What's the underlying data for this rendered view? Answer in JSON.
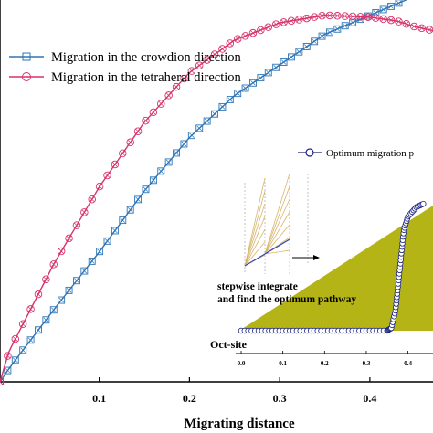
{
  "chart_data": {
    "type": "line",
    "xlabel": "Migrating distance",
    "ylabel": "",
    "xlim": [
      -0.01,
      0.47
    ],
    "ylim": [
      0,
      1.0
    ],
    "x_ticks": [
      "0.1",
      "0.2",
      "0.3",
      "0.4"
    ],
    "x_tick_values": [
      0.1,
      0.2,
      0.3,
      0.4
    ],
    "grid": false,
    "legend_position": "top-left",
    "series": [
      {
        "name": "Migration in the crowdion direction",
        "color": "#2e75b6",
        "marker": "square-x",
        "x": [
          -0.01,
          0.0,
          0.05,
          0.1,
          0.15,
          0.2,
          0.25,
          0.3,
          0.35,
          0.4,
          0.43,
          0.45,
          0.47
        ],
        "y": [
          0.0,
          0.035,
          0.19,
          0.34,
          0.5,
          0.64,
          0.75,
          0.83,
          0.91,
          0.96,
          0.99,
          1.01,
          1.04
        ]
      },
      {
        "name": "Migration in the tetraheral direction",
        "color": "#d6336c",
        "marker": "circle-x",
        "x": [
          -0.01,
          0.0,
          0.05,
          0.1,
          0.15,
          0.2,
          0.25,
          0.3,
          0.35,
          0.4,
          0.43,
          0.45,
          0.47
        ],
        "y": [
          0.0,
          0.08,
          0.31,
          0.51,
          0.68,
          0.81,
          0.895,
          0.94,
          0.96,
          0.955,
          0.945,
          0.93,
          0.92
        ]
      }
    ],
    "inset": {
      "legend": "Optimum migration p",
      "x_ticks": [
        "0.0",
        "0.1",
        "0.2",
        "0.3",
        "0.4"
      ],
      "label_oct": "Oct-site",
      "annotation_line1": "stepwise integrate",
      "annotation_line2": "and find the optimum pathway",
      "pathway": {
        "x": [
          0.0,
          0.05,
          0.1,
          0.15,
          0.2,
          0.25,
          0.3,
          0.35,
          0.36,
          0.37,
          0.375,
          0.38,
          0.385,
          0.39,
          0.4,
          0.42,
          0.44
        ],
        "y": [
          0.0,
          0.0,
          0.0,
          0.0,
          0.0,
          0.0,
          0.0,
          0.0,
          0.02,
          0.15,
          0.3,
          0.45,
          0.6,
          0.75,
          0.85,
          0.92,
          0.95
        ]
      },
      "fill_color": "#b5b417",
      "fan_color": "#d9b56a"
    }
  }
}
